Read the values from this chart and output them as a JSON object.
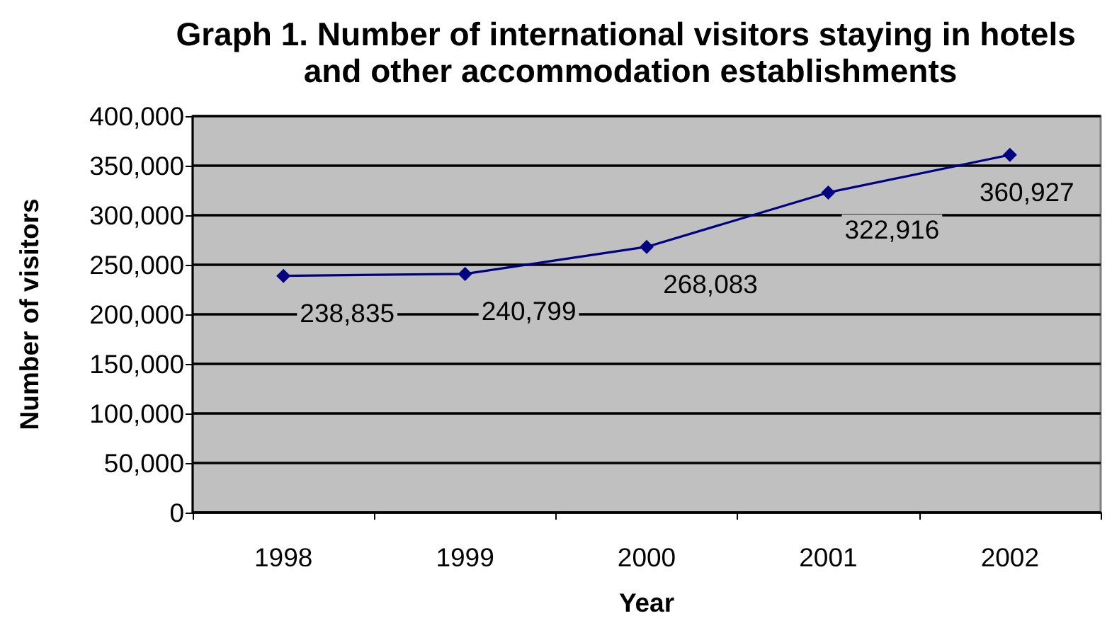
{
  "chart_data": {
    "type": "line",
    "title": "Graph 1. Number of international visitors staying in hotels and other accommodation establishments",
    "xlabel": "Year",
    "ylabel": "Number of visitors",
    "categories": [
      "1998",
      "1999",
      "2000",
      "2001",
      "2002"
    ],
    "series": [
      {
        "color": "#000080",
        "values": [
          238835,
          240799,
          268083,
          322916,
          360927
        ],
        "value_labels": [
          "238,835",
          "240,799",
          "268,083",
          "322,916",
          "360,927"
        ]
      }
    ],
    "ylim": [
      0,
      400000
    ],
    "yticks": [
      0,
      {
        "value": 50000,
        "label": "50,000"
      },
      {
        "value": 100000,
        "label": "100,000"
      },
      {
        "value": 150000,
        "label": "150,000"
      },
      {
        "value": 200000,
        "label": "200,000"
      },
      {
        "value": 250000,
        "label": "250,000"
      },
      {
        "value": 300000,
        "label": "300,000"
      },
      {
        "value": 350000,
        "label": "350,000"
      },
      {
        "value": 400000,
        "label": "400,000"
      }
    ],
    "grid": "y",
    "marker": "diamond",
    "line_style": "solid"
  }
}
